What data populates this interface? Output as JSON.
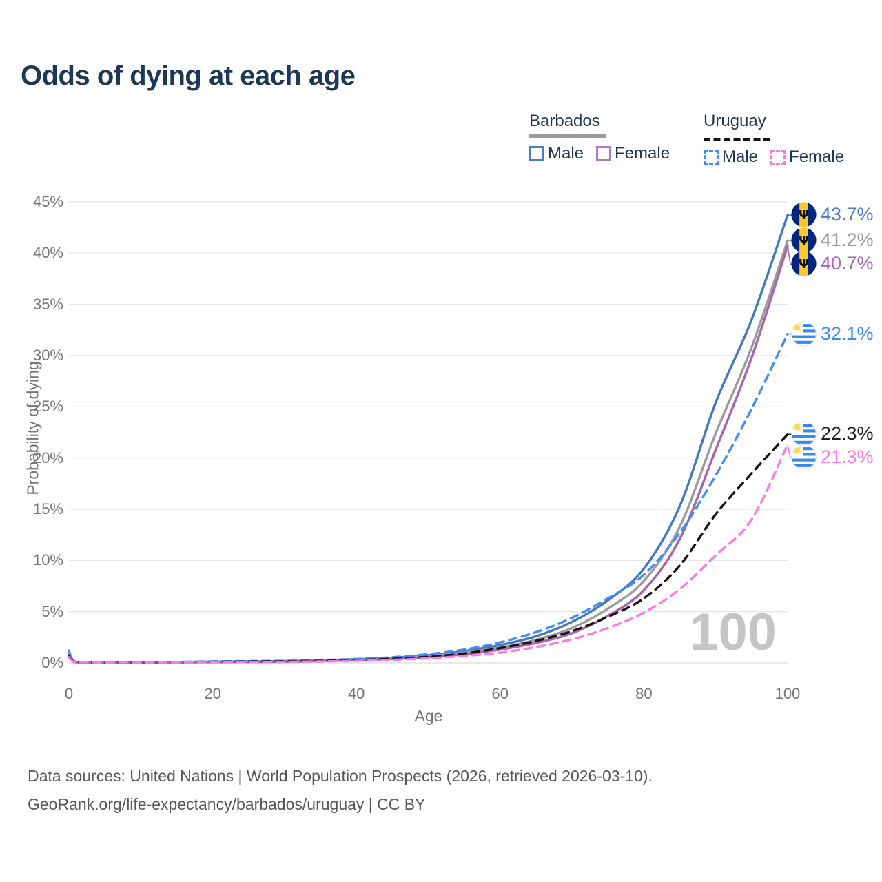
{
  "title": "Odds of dying at each age",
  "legend": {
    "groups": [
      {
        "country": "Barbados",
        "line_style": "solid",
        "underline_color": "#9b9b9b",
        "items": [
          {
            "label": "Male",
            "color": "#4a7cc7",
            "dashed": false
          },
          {
            "label": "Female",
            "color": "#b279bd",
            "dashed": false
          }
        ]
      },
      {
        "country": "Uruguay",
        "line_style": "dashed",
        "underline_color": "#141414",
        "items": [
          {
            "label": "Male",
            "color": "#428df5",
            "dashed": true
          },
          {
            "label": "Female",
            "color": "#fb7ae8",
            "dashed": true
          }
        ]
      }
    ]
  },
  "chart_data": {
    "type": "line",
    "title": "Odds of dying at each age",
    "xlabel": "Age",
    "ylabel": "Probability of dying",
    "xlim": [
      0,
      100
    ],
    "ylim": [
      0,
      45
    ],
    "x_ticks": [
      0,
      20,
      40,
      60,
      80,
      100
    ],
    "x_tick_labels": [
      "0",
      "20",
      "40",
      "60",
      "80",
      "100"
    ],
    "y_ticks_pct": [
      0,
      5,
      10,
      15,
      20,
      25,
      30,
      35,
      40,
      45
    ],
    "y_tick_labels": [
      "0%",
      "5%",
      "10%",
      "15%",
      "20%",
      "25%",
      "30%",
      "35%",
      "40%",
      "45%"
    ],
    "grid": "horizontal",
    "legend_position": "top-right",
    "watermark": "100",
    "ages": [
      0,
      1,
      5,
      10,
      15,
      20,
      25,
      30,
      35,
      40,
      45,
      50,
      55,
      60,
      65,
      70,
      75,
      80,
      85,
      90,
      95,
      100
    ],
    "series": [
      {
        "name": "Barbados Male",
        "country": "Barbados",
        "sex": "Male",
        "color": "#4377c4",
        "label_color": "#4a7cc7",
        "dash": "solid",
        "end_value_pct": 43.7,
        "end_label": "43.7%",
        "values": [
          1.2,
          0.08,
          0.04,
          0.05,
          0.08,
          0.12,
          0.15,
          0.18,
          0.25,
          0.35,
          0.5,
          0.75,
          1.15,
          1.75,
          2.6,
          4.0,
          6.1,
          9.2,
          15.3,
          25.4,
          33.5,
          43.7
        ]
      },
      {
        "name": "Barbados Both sexes",
        "country": "Barbados",
        "sex": "Both",
        "color": "#9b9b9b",
        "label_color": "#9b9b9b",
        "dash": "solid",
        "end_value_pct": 41.2,
        "end_label": "41.2%",
        "values": [
          1.05,
          0.07,
          0.035,
          0.045,
          0.07,
          0.1,
          0.13,
          0.16,
          0.22,
          0.3,
          0.44,
          0.66,
          1.0,
          1.5,
          2.25,
          3.4,
          5.3,
          8.0,
          13.3,
          22.4,
          30.8,
          41.2
        ]
      },
      {
        "name": "Barbados Female",
        "country": "Barbados",
        "sex": "Female",
        "color": "#a963ae",
        "label_color": "#ad63b8",
        "dash": "solid",
        "end_value_pct": 40.7,
        "end_label": "40.7%",
        "values": [
          0.9,
          0.06,
          0.03,
          0.04,
          0.05,
          0.07,
          0.09,
          0.12,
          0.18,
          0.26,
          0.38,
          0.56,
          0.85,
          1.3,
          1.95,
          2.9,
          4.6,
          7.1,
          12.1,
          20.8,
          29.8,
          40.7
        ]
      },
      {
        "name": "Uruguay Male",
        "country": "Uruguay",
        "sex": "Male",
        "color": "#428df5",
        "label_color": "#3e8bf2",
        "dash": "dashed",
        "end_value_pct": 32.1,
        "end_label": "32.1%",
        "values": [
          0.75,
          0.06,
          0.03,
          0.04,
          0.09,
          0.14,
          0.17,
          0.2,
          0.27,
          0.38,
          0.55,
          0.85,
          1.3,
          2.0,
          3.0,
          4.4,
          6.3,
          8.6,
          12.7,
          18.3,
          24.8,
          32.1
        ]
      },
      {
        "name": "Uruguay Both sexes",
        "country": "Uruguay",
        "sex": "Both",
        "color": "#141414",
        "label_color": "#1f1f1f",
        "dash": "dashed",
        "end_value_pct": 22.3,
        "end_label": "22.3%",
        "values": [
          0.65,
          0.05,
          0.025,
          0.035,
          0.065,
          0.1,
          0.12,
          0.15,
          0.2,
          0.28,
          0.4,
          0.6,
          0.92,
          1.45,
          2.15,
          3.1,
          4.5,
          6.3,
          9.5,
          14.5,
          18.5,
          22.3
        ]
      },
      {
        "name": "Uruguay Female",
        "country": "Uruguay",
        "sex": "Female",
        "color": "#fb7ae8",
        "label_color": "#fb7ae8",
        "dash": "dashed",
        "end_value_pct": 21.3,
        "end_label": "21.3%",
        "values": [
          0.55,
          0.045,
          0.02,
          0.03,
          0.04,
          0.06,
          0.08,
          0.1,
          0.14,
          0.2,
          0.3,
          0.45,
          0.68,
          1.0,
          1.55,
          2.3,
          3.4,
          4.9,
          7.2,
          10.5,
          14.0,
          21.3
        ]
      }
    ]
  },
  "flags": {
    "barbados": {
      "blue": "#00267F",
      "gold": "#FFC72E",
      "trident": "Ψ"
    },
    "uruguay": {
      "stripe_blue": "#338AF3",
      "sun_yellow": "#FFDA44"
    }
  },
  "colors": {
    "title": "#1d3756",
    "axis_text": "#757575",
    "gridline": "#e5e5e5",
    "watermark": "#c5c5c5",
    "footer_text": "#55565a"
  },
  "footer": {
    "line1": "Data sources: United Nations | World Population Prospects (2026, retrieved 2026-03-10).",
    "line2": "GeoRank.org/life-expectancy/barbados/uruguay | CC BY"
  }
}
